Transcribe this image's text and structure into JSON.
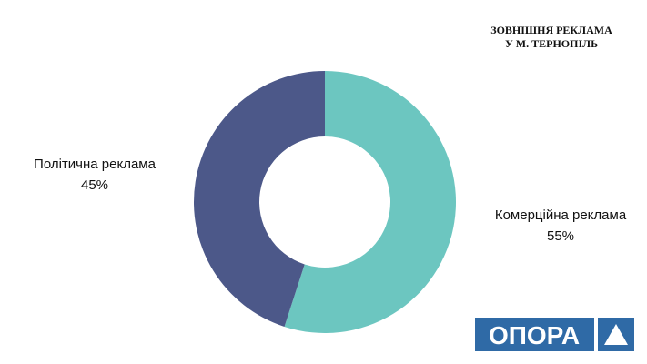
{
  "chart_data": {
    "type": "donut",
    "title": [
      "ЗОВНІШНЯ РЕКЛАМА",
      "У М. ТЕРНОПІЛЬ"
    ],
    "categories": [
      "Комерційна реклама",
      "Політична реклама"
    ],
    "values": [
      55,
      45
    ],
    "value_labels": [
      "55%",
      "45%"
    ],
    "colors": [
      "#6cc6c0",
      "#4c5889"
    ]
  },
  "logo": "ОПОРА"
}
